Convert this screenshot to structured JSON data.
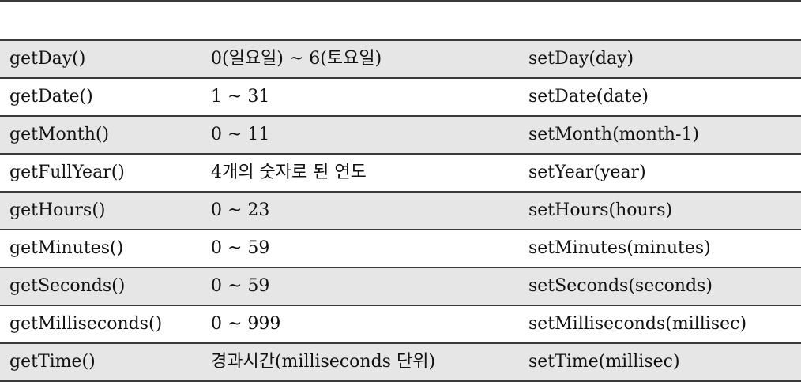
{
  "table": {
    "header": [
      "",
      "",
      ""
    ],
    "rows": [
      {
        "getter": "getDay()",
        "range": "0(일요일) ~ 6(토요일)",
        "setter": "setDay(day)"
      },
      {
        "getter": "getDate()",
        "range": "1 ~ 31",
        "setter": "setDate(date)"
      },
      {
        "getter": "getMonth()",
        "range": "0 ~ 11",
        "setter": "setMonth(month-1)"
      },
      {
        "getter": "getFullYear()",
        "range": "4개의 숫자로 된 연도",
        "setter": "setYear(year)"
      },
      {
        "getter": "getHours()",
        "range": "0 ~ 23",
        "setter": "setHours(hours)"
      },
      {
        "getter": "getMinutes()",
        "range": "0 ~ 59",
        "setter": "setMinutes(minutes)"
      },
      {
        "getter": "getSeconds()",
        "range": "0 ~ 59",
        "setter": "setSeconds(seconds)"
      },
      {
        "getter": "getMilliseconds()",
        "range": "0 ~ 999",
        "setter": "setMilliseconds(millisec)"
      },
      {
        "getter": "getTime()",
        "range": "경과시간(milliseconds 단위)",
        "setter": "setTime(millisec)"
      }
    ]
  },
  "colors": {
    "rule": "#3a3a3a",
    "shaded_row": "#e6e6e6",
    "plain_row": "#ffffff"
  }
}
